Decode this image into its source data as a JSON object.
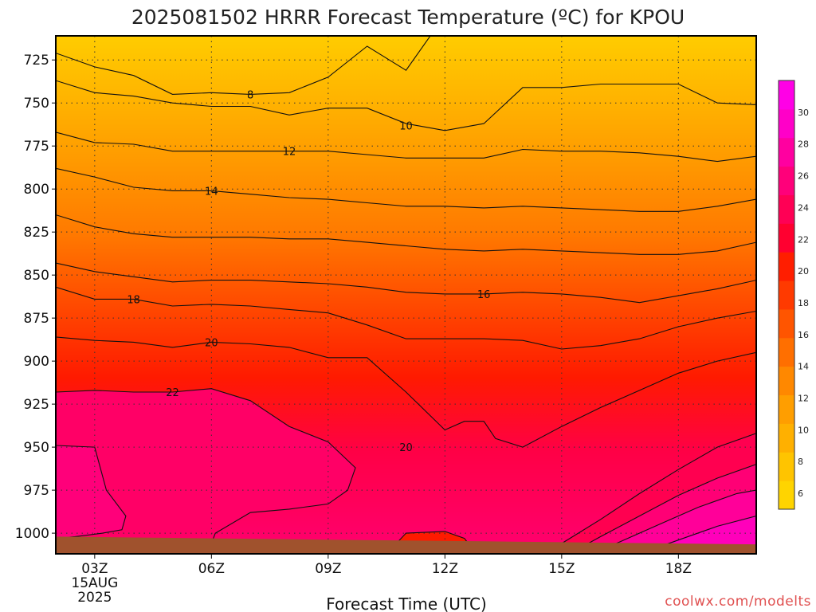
{
  "chart_data": {
    "type": "heatmap",
    "title": "2025081502 HRRR Forecast Temperature (ºC) for KPOU",
    "xlabel": "Forecast Time (UTC)",
    "ylabel": "",
    "y_axis": {
      "ticks": [
        725,
        750,
        775,
        800,
        825,
        850,
        875,
        900,
        925,
        950,
        975,
        1000
      ],
      "range": [
        711,
        1012
      ],
      "inverted": true
    },
    "x_axis": {
      "ticks": [
        "03Z",
        "06Z",
        "09Z",
        "12Z",
        "15Z",
        "18Z"
      ],
      "first_tick_extra": [
        "15AUG",
        "2025"
      ],
      "hour_range": [
        2,
        20
      ]
    },
    "grid": true,
    "colorbar": {
      "labels": [
        6,
        8,
        10,
        12,
        14,
        16,
        18,
        20,
        22,
        24,
        26,
        28,
        30
      ],
      "bounds": [
        5,
        32
      ],
      "colors": [
        "#ffd400",
        "#ffc400",
        "#ffb000",
        "#ff9e00",
        "#ff8800",
        "#ff6f00",
        "#ff5500",
        "#ff3a00",
        "#ff1e00",
        "#ff0030",
        "#ff0055",
        "#ff007a",
        "#ff00a0",
        "#ff00c8",
        "#ff00e6"
      ]
    },
    "contours": [
      {
        "temp": 8,
        "label": "8",
        "points": [
          [
            2,
            721
          ],
          [
            3,
            729
          ],
          [
            4,
            734
          ],
          [
            5,
            745
          ],
          [
            6,
            744
          ],
          [
            7,
            745
          ],
          [
            8,
            744
          ],
          [
            9,
            735
          ],
          [
            10,
            717
          ],
          [
            11,
            731
          ],
          [
            12,
            699
          ]
        ]
      },
      {
        "temp": 10,
        "label": "10",
        "points": [
          [
            2,
            737
          ],
          [
            3,
            744
          ],
          [
            4,
            746
          ],
          [
            5,
            750
          ],
          [
            6,
            752
          ],
          [
            7,
            752
          ],
          [
            8,
            757
          ],
          [
            9,
            753
          ],
          [
            10,
            753
          ],
          [
            11,
            762
          ],
          [
            12,
            766
          ],
          [
            13,
            762
          ],
          [
            14,
            741
          ],
          [
            15,
            741
          ],
          [
            16,
            739
          ],
          [
            17,
            739
          ],
          [
            18,
            739
          ],
          [
            19,
            750
          ],
          [
            20,
            751
          ]
        ]
      },
      {
        "temp": 12,
        "label": "12",
        "points": [
          [
            2,
            767
          ],
          [
            3,
            773
          ],
          [
            4,
            774
          ],
          [
            5,
            778
          ],
          [
            6,
            778
          ],
          [
            7,
            778
          ],
          [
            8,
            778
          ],
          [
            9,
            778
          ],
          [
            10,
            780
          ],
          [
            11,
            782
          ],
          [
            12,
            782
          ],
          [
            13,
            782
          ],
          [
            14,
            777
          ],
          [
            15,
            778
          ],
          [
            16,
            778
          ],
          [
            17,
            779
          ],
          [
            18,
            781
          ],
          [
            19,
            784
          ],
          [
            20,
            781
          ]
        ]
      },
      {
        "temp": 14,
        "label": "14",
        "points": [
          [
            2,
            788
          ],
          [
            3,
            793
          ],
          [
            4,
            799
          ],
          [
            5,
            801
          ],
          [
            6,
            801
          ],
          [
            7,
            803
          ],
          [
            8,
            805
          ],
          [
            9,
            806
          ],
          [
            10,
            808
          ],
          [
            11,
            810
          ],
          [
            12,
            810
          ],
          [
            13,
            811
          ],
          [
            14,
            810
          ],
          [
            15,
            811
          ],
          [
            16,
            812
          ],
          [
            17,
            813
          ],
          [
            18,
            813
          ],
          [
            19,
            810
          ],
          [
            20,
            806
          ]
        ]
      },
      {
        "temp": 15,
        "label": "",
        "points": [
          [
            2,
            815
          ],
          [
            3,
            822
          ],
          [
            4,
            826
          ],
          [
            5,
            828
          ],
          [
            6,
            828
          ],
          [
            7,
            828
          ],
          [
            8,
            829
          ],
          [
            9,
            829
          ],
          [
            10,
            831
          ],
          [
            11,
            833
          ],
          [
            12,
            835
          ],
          [
            13,
            836
          ],
          [
            14,
            835
          ],
          [
            15,
            836
          ],
          [
            16,
            837
          ],
          [
            17,
            838
          ],
          [
            18,
            838
          ],
          [
            19,
            836
          ],
          [
            20,
            831
          ]
        ]
      },
      {
        "temp": 16,
        "label": "16",
        "points": [
          [
            2,
            843
          ],
          [
            3,
            848
          ],
          [
            4,
            851
          ],
          [
            5,
            854
          ],
          [
            6,
            853
          ],
          [
            7,
            853
          ],
          [
            8,
            854
          ],
          [
            9,
            855
          ],
          [
            10,
            857
          ],
          [
            11,
            860
          ],
          [
            12,
            861
          ],
          [
            13,
            861
          ],
          [
            14,
            860
          ],
          [
            15,
            861
          ],
          [
            16,
            863
          ],
          [
            17,
            866
          ],
          [
            18,
            862
          ],
          [
            19,
            858
          ],
          [
            20,
            853
          ]
        ]
      },
      {
        "temp": 18,
        "label": "18",
        "points": [
          [
            2,
            857
          ],
          [
            3,
            864
          ],
          [
            4,
            864
          ],
          [
            5,
            868
          ],
          [
            6,
            867
          ],
          [
            7,
            868
          ],
          [
            8,
            870
          ],
          [
            9,
            872
          ],
          [
            10,
            879
          ],
          [
            11,
            887
          ],
          [
            12,
            887
          ],
          [
            13,
            887
          ],
          [
            14,
            888
          ],
          [
            15,
            893
          ],
          [
            16,
            891
          ],
          [
            17,
            887
          ],
          [
            18,
            880
          ],
          [
            19,
            875
          ],
          [
            20,
            871
          ]
        ]
      },
      {
        "temp": 20,
        "label": "20",
        "points": [
          [
            2,
            886
          ],
          [
            3,
            888
          ],
          [
            4,
            889
          ],
          [
            5,
            892
          ],
          [
            6,
            889
          ],
          [
            7,
            890
          ],
          [
            8,
            892
          ],
          [
            9,
            898
          ],
          [
            10,
            898
          ],
          [
            11,
            918
          ],
          [
            12,
            940
          ],
          [
            12.5,
            935
          ],
          [
            13,
            935
          ],
          [
            13.3,
            945
          ],
          [
            14,
            950
          ],
          [
            15,
            938
          ],
          [
            16,
            927
          ],
          [
            17,
            917
          ],
          [
            18,
            907
          ],
          [
            19,
            900
          ],
          [
            20,
            895
          ]
        ]
      },
      {
        "temp": 22,
        "label": "22",
        "points": [
          [
            2,
            918
          ],
          [
            3,
            917
          ],
          [
            4,
            918
          ],
          [
            5,
            918
          ],
          [
            6,
            916
          ],
          [
            7,
            923
          ],
          [
            8,
            938
          ],
          [
            9,
            947
          ],
          [
            9.7,
            962
          ],
          [
            9.5,
            975
          ],
          [
            9,
            983
          ],
          [
            8,
            986
          ],
          [
            7,
            988
          ],
          [
            6.1,
            1000
          ],
          [
            6,
            1006
          ],
          [
            5.5,
            1008
          ]
        ]
      },
      {
        "temp": 22,
        "label": "",
        "points": [
          [
            14.7,
            1012
          ],
          [
            15,
            1006
          ],
          [
            16,
            992
          ],
          [
            17,
            977
          ],
          [
            18,
            963
          ],
          [
            19,
            950
          ],
          [
            20,
            942
          ]
        ]
      },
      {
        "temp": 24,
        "label": "",
        "points": [
          [
            2,
            949
          ],
          [
            3,
            950
          ],
          [
            3.3,
            975
          ],
          [
            3.8,
            990
          ],
          [
            3.7,
            998
          ],
          [
            3.2,
            1000
          ],
          [
            2.5,
            1002
          ],
          [
            2,
            1003
          ]
        ]
      },
      {
        "temp": 24,
        "label": "",
        "points": [
          [
            15.2,
            1012
          ],
          [
            16,
            1002
          ],
          [
            17,
            990
          ],
          [
            18,
            978
          ],
          [
            19,
            968
          ],
          [
            20,
            960
          ]
        ]
      },
      {
        "temp": 26,
        "label": "",
        "points": [
          [
            15.8,
            1012
          ],
          [
            16.5,
            1005
          ],
          [
            17.5,
            995
          ],
          [
            18.5,
            985
          ],
          [
            19.5,
            977
          ],
          [
            20,
            975
          ]
        ]
      },
      {
        "temp": 28,
        "label": "",
        "points": [
          [
            17,
            1012
          ],
          [
            18,
            1004
          ],
          [
            19,
            996
          ],
          [
            20,
            990
          ]
        ]
      },
      {
        "temp": 30,
        "label": "",
        "points": [
          [
            19.2,
            1012
          ],
          [
            20,
            1008
          ]
        ]
      },
      {
        "temp": 20,
        "label": "",
        "points": [
          [
            10.5,
            1012
          ],
          [
            11,
            1000
          ],
          [
            12,
            999
          ],
          [
            12.5,
            1003
          ],
          [
            12.8,
            1012
          ]
        ]
      }
    ]
  },
  "credit": "coolwx.com/modelts"
}
